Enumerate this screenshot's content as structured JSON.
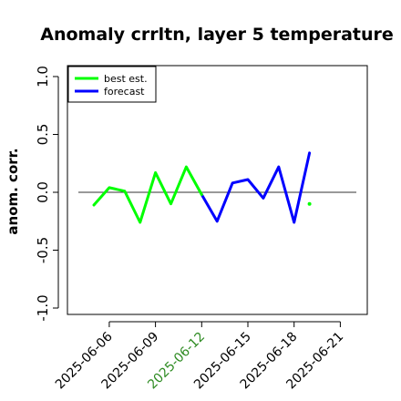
{
  "chart_data": {
    "type": "line",
    "title": "Anomaly crrltn, layer 5 temperature",
    "xlabel": "",
    "ylabel": "anom. corr.",
    "ylim": [
      -1.0,
      1.0
    ],
    "yticks": [
      "-1.0",
      "-0.5",
      "0.0",
      "0.5",
      "1.0"
    ],
    "xticks": [
      "2025-06-06",
      "2025-06-09",
      "2025-06-12",
      "2025-06-15",
      "2025-06-18",
      "2025-06-21"
    ],
    "highlight_color": "#2e8b22",
    "highlight_tick": "2025-06-12",
    "reference_line": 0.0,
    "legend_position": "top-left",
    "x": [
      "2025-06-05",
      "2025-06-06",
      "2025-06-07",
      "2025-06-08",
      "2025-06-09",
      "2025-06-10",
      "2025-06-11",
      "2025-06-12",
      "2025-06-13",
      "2025-06-14",
      "2025-06-15",
      "2025-06-16",
      "2025-06-17",
      "2025-06-18",
      "2025-06-19",
      "2025-06-20",
      "2025-06-21"
    ],
    "series": [
      {
        "name": "best est.",
        "color": "#00ff00",
        "values": [
          -0.11,
          0.04,
          0.01,
          -0.26,
          0.17,
          -0.1,
          0.22,
          -0.02,
          null,
          null,
          null,
          null,
          null,
          null,
          -0.1,
          null,
          null
        ]
      },
      {
        "name": "forecast",
        "color": "#0000ff",
        "values": [
          null,
          null,
          null,
          null,
          null,
          null,
          null,
          -0.02,
          -0.25,
          0.08,
          0.11,
          -0.05,
          0.22,
          -0.26,
          0.34,
          null,
          null
        ]
      }
    ]
  }
}
